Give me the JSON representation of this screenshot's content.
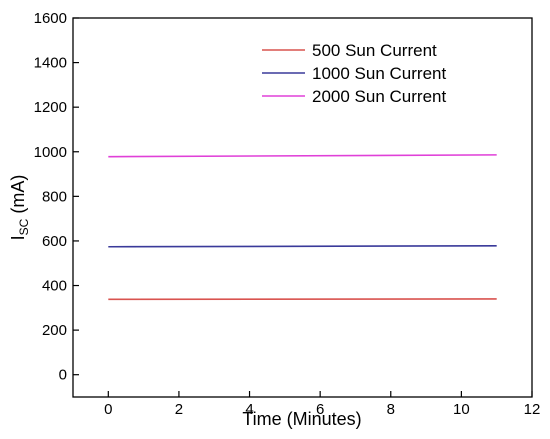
{
  "chart_data": {
    "type": "line",
    "xlabel": "Time (Minutes)",
    "ylabel_main": "I",
    "ylabel_sub": "SC",
    "ylabel_unit": " (mA)",
    "xlim": [
      -1,
      12
    ],
    "ylim": [
      -100,
      1600
    ],
    "xticks": [
      0,
      2,
      4,
      6,
      8,
      10,
      12
    ],
    "yticks": [
      0,
      200,
      400,
      600,
      800,
      1000,
      1200,
      1400,
      1600
    ],
    "grid": false,
    "legend_position": "top-right",
    "series": [
      {
        "name": "500 Sun Current",
        "color": "#d9534f",
        "x": [
          0,
          11
        ],
        "y": [
          338,
          340
        ]
      },
      {
        "name": "1000 Sun Current",
        "color": "#3a3a9a",
        "x": [
          0,
          11
        ],
        "y": [
          574,
          578
        ]
      },
      {
        "name": "2000 Sun Current",
        "color": "#e040d8",
        "x": [
          0,
          11
        ],
        "y": [
          978,
          986
        ]
      }
    ]
  }
}
